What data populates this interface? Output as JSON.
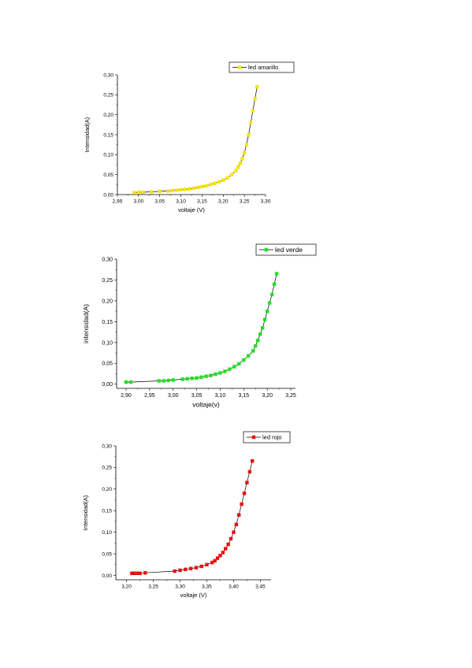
{
  "chart_data": [
    {
      "type": "line",
      "xlabel": "voltaje (V)",
      "ylabel": "Intensidad(A)",
      "xlim": [
        2.95,
        3.3
      ],
      "ylim": [
        0.0,
        0.3
      ],
      "xticks": [
        "2,95",
        "3,00",
        "3,05",
        "3,10",
        "3,15",
        "3,20",
        "3,25",
        "3,30"
      ],
      "yticks": [
        "0,00",
        "0,05",
        "0,10",
        "0,15",
        "0,20",
        "0,25",
        "0,30"
      ],
      "legend_position": "top-right",
      "grid": false,
      "series": [
        {
          "name": "led amarillo",
          "color": "#f5e60c",
          "x": [
            2.99,
            3.0,
            3.01,
            3.03,
            3.05,
            3.07,
            3.08,
            3.09,
            3.1,
            3.11,
            3.12,
            3.13,
            3.14,
            3.15,
            3.16,
            3.17,
            3.18,
            3.19,
            3.2,
            3.21,
            3.22,
            3.23,
            3.235,
            3.24,
            3.245,
            3.25,
            3.255,
            3.26,
            3.265,
            3.27,
            3.275,
            3.28
          ],
          "y": [
            0.005,
            0.006,
            0.006,
            0.007,
            0.008,
            0.009,
            0.01,
            0.011,
            0.012,
            0.013,
            0.014,
            0.016,
            0.018,
            0.02,
            0.022,
            0.025,
            0.028,
            0.032,
            0.036,
            0.042,
            0.05,
            0.06,
            0.068,
            0.078,
            0.09,
            0.105,
            0.125,
            0.15,
            0.18,
            0.21,
            0.24,
            0.27
          ]
        }
      ]
    },
    {
      "type": "line",
      "xlabel": "voltaje(v)",
      "ylabel": "intensidad(A)",
      "xlim": [
        2.88,
        3.26
      ],
      "ylim": [
        -0.01,
        0.3
      ],
      "xticks": [
        "2,90",
        "2,95",
        "3,00",
        "3,05",
        "3,10",
        "3,15",
        "3,20",
        "3,25"
      ],
      "yticks": [
        "0,00",
        "0,05",
        "0,10",
        "0,15",
        "0,20",
        "0,25",
        "0,30"
      ],
      "legend_position": "top-right",
      "grid": false,
      "series": [
        {
          "name": "led verde",
          "color": "#22e022",
          "x": [
            2.9,
            2.91,
            2.97,
            2.98,
            2.99,
            3.0,
            3.02,
            3.03,
            3.04,
            3.05,
            3.06,
            3.07,
            3.08,
            3.09,
            3.1,
            3.11,
            3.12,
            3.13,
            3.14,
            3.15,
            3.16,
            3.17,
            3.175,
            3.18,
            3.185,
            3.19,
            3.195,
            3.2,
            3.205,
            3.21,
            3.215,
            3.22
          ],
          "y": [
            0.005,
            0.005,
            0.008,
            0.008,
            0.009,
            0.01,
            0.012,
            0.013,
            0.014,
            0.015,
            0.017,
            0.019,
            0.021,
            0.024,
            0.027,
            0.031,
            0.036,
            0.042,
            0.049,
            0.058,
            0.068,
            0.08,
            0.092,
            0.105,
            0.12,
            0.135,
            0.155,
            0.175,
            0.195,
            0.215,
            0.24,
            0.265
          ]
        }
      ]
    },
    {
      "type": "line",
      "xlabel": "voltaje (V)",
      "ylabel": "Intensidad(A)",
      "xlim": [
        3.18,
        3.47
      ],
      "ylim": [
        -0.01,
        0.3
      ],
      "xticks": [
        "3,20",
        "3,25",
        "3,30",
        "3,35",
        "3,40",
        "3,45"
      ],
      "yticks": [
        "0,00",
        "0,05",
        "0,10",
        "0,15",
        "0,20",
        "0,25",
        "0,30"
      ],
      "legend_position": "top-right",
      "grid": false,
      "series": [
        {
          "name": "led rojo",
          "color": "#e81010",
          "x": [
            3.21,
            3.215,
            3.22,
            3.225,
            3.235,
            3.29,
            3.3,
            3.31,
            3.32,
            3.33,
            3.34,
            3.35,
            3.36,
            3.365,
            3.37,
            3.375,
            3.38,
            3.385,
            3.39,
            3.395,
            3.4,
            3.405,
            3.41,
            3.415,
            3.42,
            3.425,
            3.43,
            3.435
          ],
          "y": [
            0.005,
            0.005,
            0.005,
            0.005,
            0.006,
            0.01,
            0.012,
            0.014,
            0.016,
            0.018,
            0.021,
            0.025,
            0.03,
            0.034,
            0.04,
            0.046,
            0.053,
            0.062,
            0.072,
            0.085,
            0.1,
            0.118,
            0.14,
            0.165,
            0.19,
            0.215,
            0.24,
            0.265
          ]
        }
      ]
    }
  ]
}
